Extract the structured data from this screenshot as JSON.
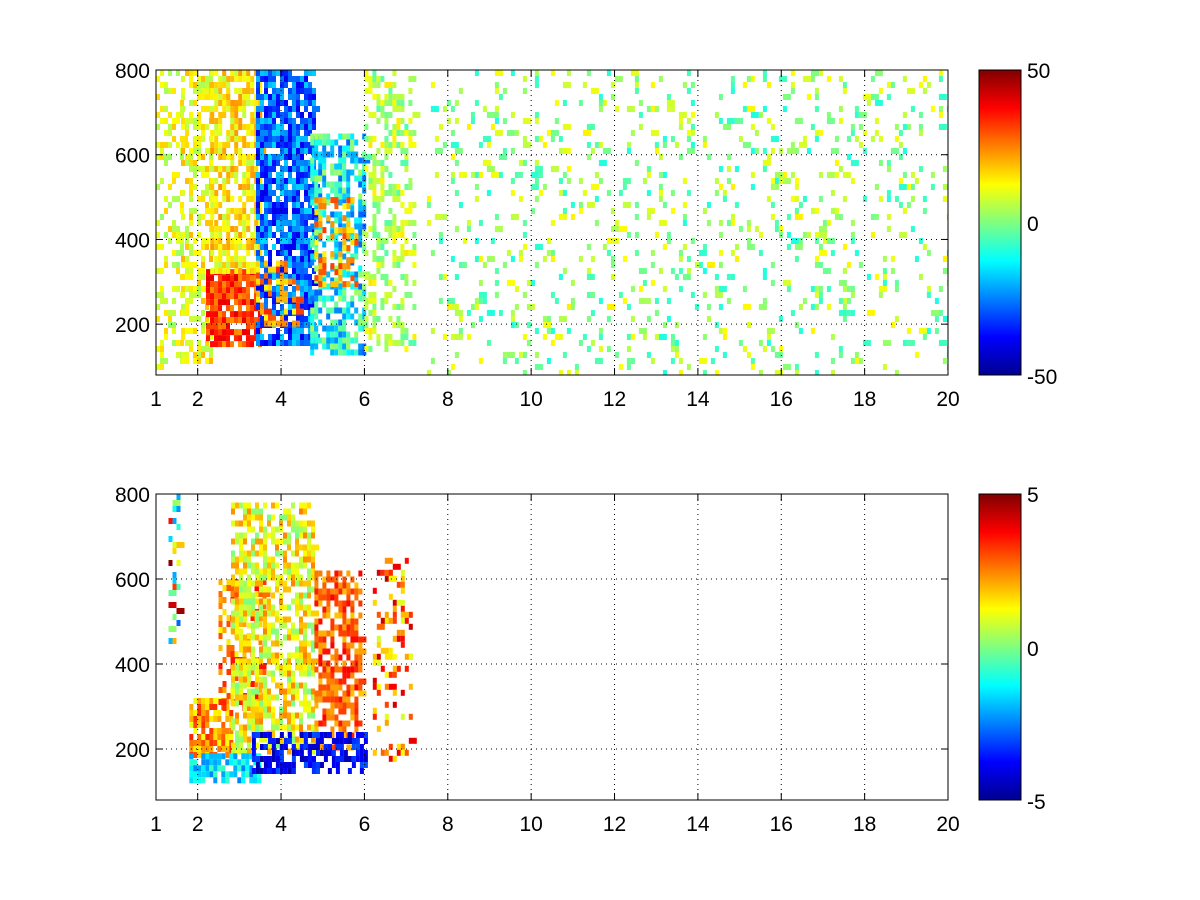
{
  "colormap": [
    "#00008f",
    "#0000ff",
    "#00ffff",
    "#ffff00",
    "#ff0000",
    "#800000"
  ],
  "chart_data": [
    {
      "type": "heatmap",
      "title": "",
      "xlabel": "",
      "ylabel": "",
      "xlim": [
        1,
        20
      ],
      "ylim": [
        80,
        800
      ],
      "x_ticks": [
        1,
        2,
        4,
        6,
        8,
        10,
        12,
        14,
        16,
        18,
        20
      ],
      "x_tick_labels": [
        "1",
        "2",
        "4",
        "6",
        "8",
        "10",
        "12",
        "14",
        "16",
        "18",
        "20"
      ],
      "x_grid_ticks": [
        2,
        4,
        6,
        8,
        10,
        12,
        14,
        16,
        18,
        20
      ],
      "y_ticks": [
        200,
        400,
        600,
        800
      ],
      "y_tick_labels": [
        "200",
        "400",
        "600",
        "800"
      ],
      "grid": "dotted",
      "colorbar": {
        "min": -50,
        "max": 50,
        "tick_labels": [
          "50",
          "0",
          "-50"
        ],
        "placement": "right"
      },
      "regions": [
        {
          "x": [
            1.0,
            1.6
          ],
          "y": [
            100,
            800
          ],
          "value": 10,
          "spread": 8,
          "density": 0.35
        },
        {
          "x": [
            1.6,
            2.3
          ],
          "y": [
            120,
            800
          ],
          "value": 12,
          "spread": 8,
          "density": 0.5
        },
        {
          "x": [
            2.2,
            3.5
          ],
          "y": [
            150,
            330
          ],
          "value": 32,
          "spread": 9,
          "density": 0.85
        },
        {
          "x": [
            2.3,
            3.5
          ],
          "y": [
            330,
            800
          ],
          "value": 14,
          "spread": 9,
          "density": 0.7
        },
        {
          "x": [
            3.4,
            4.8
          ],
          "y": [
            160,
            800
          ],
          "value": -28,
          "spread": 12,
          "density": 0.8
        },
        {
          "x": [
            3.4,
            4.4
          ],
          "y": [
            200,
            350
          ],
          "value": 22,
          "spread": 12,
          "density": 0.4
        },
        {
          "x": [
            4.7,
            6.0
          ],
          "y": [
            140,
            650
          ],
          "value": -12,
          "spread": 16,
          "density": 0.6
        },
        {
          "x": [
            4.8,
            5.8
          ],
          "y": [
            300,
            500
          ],
          "value": 22,
          "spread": 10,
          "density": 0.35
        },
        {
          "x": [
            6.0,
            7.2
          ],
          "y": [
            140,
            800
          ],
          "value": 5,
          "spread": 10,
          "density": 0.35
        },
        {
          "x": [
            7.5,
            20.0
          ],
          "y": [
            80,
            800
          ],
          "value": 2,
          "spread": 12,
          "density": 0.13
        }
      ]
    },
    {
      "type": "heatmap",
      "title": "",
      "xlabel": "",
      "ylabel": "",
      "xlim": [
        1,
        20
      ],
      "ylim": [
        80,
        800
      ],
      "x_ticks": [
        1,
        2,
        4,
        6,
        8,
        10,
        12,
        14,
        16,
        18,
        20
      ],
      "x_tick_labels": [
        "1",
        "2",
        "4",
        "6",
        "8",
        "10",
        "12",
        "14",
        "16",
        "18",
        "20"
      ],
      "x_grid_ticks": [
        2,
        4,
        6,
        8,
        10,
        12,
        14,
        16,
        18,
        20
      ],
      "y_ticks": [
        200,
        400,
        600,
        800
      ],
      "y_tick_labels": [
        "200",
        "400",
        "600",
        "800"
      ],
      "grid": "dotted",
      "colorbar": {
        "min": -5,
        "max": 5,
        "tick_labels": [
          "5",
          "0",
          "-5"
        ],
        "placement": "right"
      },
      "regions": [
        {
          "x": [
            1.3,
            1.5
          ],
          "y": [
            450,
            800
          ],
          "value": 1,
          "spread": 4,
          "density": 0.3
        },
        {
          "x": [
            1.8,
            2.8
          ],
          "y": [
            190,
            320
          ],
          "value": 2.2,
          "spread": 1.2,
          "density": 0.7
        },
        {
          "x": [
            2.5,
            3.6
          ],
          "y": [
            300,
            600
          ],
          "value": 2.5,
          "spread": 1.2,
          "density": 0.45
        },
        {
          "x": [
            2.8,
            4.8
          ],
          "y": [
            200,
            780
          ],
          "value": 1.2,
          "spread": 1.3,
          "density": 0.65
        },
        {
          "x": [
            4.8,
            5.9
          ],
          "y": [
            200,
            620
          ],
          "value": 2.8,
          "spread": 1.0,
          "density": 0.6
        },
        {
          "x": [
            1.8,
            3.5
          ],
          "y": [
            130,
            190
          ],
          "value": -1.6,
          "spread": 1.0,
          "density": 0.7
        },
        {
          "x": [
            3.3,
            6.0
          ],
          "y": [
            150,
            240
          ],
          "value": -3.8,
          "spread": 0.9,
          "density": 0.6
        },
        {
          "x": [
            6.2,
            7.1
          ],
          "y": [
            180,
            650
          ],
          "value": 2.5,
          "spread": 1.8,
          "density": 0.25
        }
      ]
    }
  ]
}
